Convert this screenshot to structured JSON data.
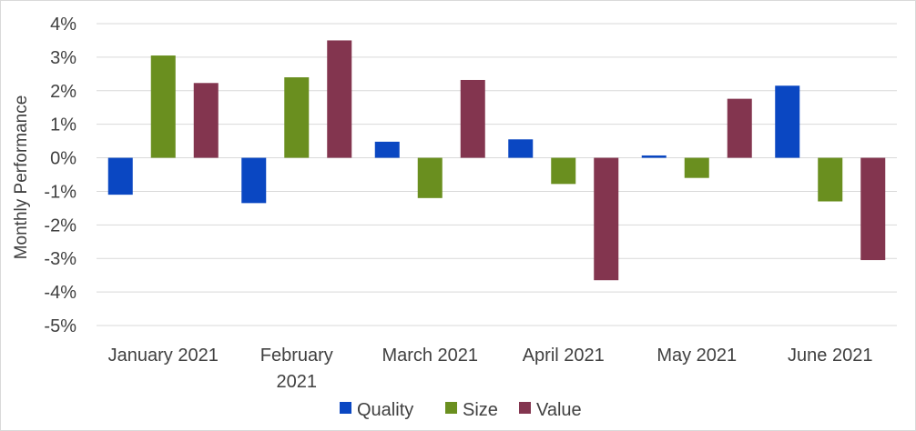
{
  "chart_data": {
    "type": "bar",
    "ylabel": "Monthly Performance",
    "ylim": [
      -5,
      4
    ],
    "yticks": [
      4,
      3,
      2,
      1,
      0,
      -1,
      -2,
      -3,
      -4,
      -5
    ],
    "ytick_labels": [
      "4%",
      "3%",
      "2%",
      "1%",
      "0%",
      "-1%",
      "-2%",
      "-3%",
      "-4%",
      "-5%"
    ],
    "grid": true,
    "legend_position": "bottom",
    "categories": [
      [
        "January 2021"
      ],
      [
        "February",
        "2021"
      ],
      [
        "March 2021"
      ],
      [
        "April 2021"
      ],
      [
        "May 2021"
      ],
      [
        "June 2021"
      ]
    ],
    "series": [
      {
        "name": "Quality",
        "color": "#0a47c2",
        "values": [
          -1.1,
          -1.35,
          0.48,
          0.55,
          0.07,
          2.15
        ]
      },
      {
        "name": "Size",
        "color": "#6a8f1f",
        "values": [
          3.05,
          2.4,
          -1.2,
          -0.78,
          -0.6,
          -1.3
        ]
      },
      {
        "name": "Value",
        "color": "#83354f",
        "values": [
          2.23,
          3.5,
          2.32,
          -3.65,
          1.76,
          -3.05
        ]
      }
    ]
  }
}
